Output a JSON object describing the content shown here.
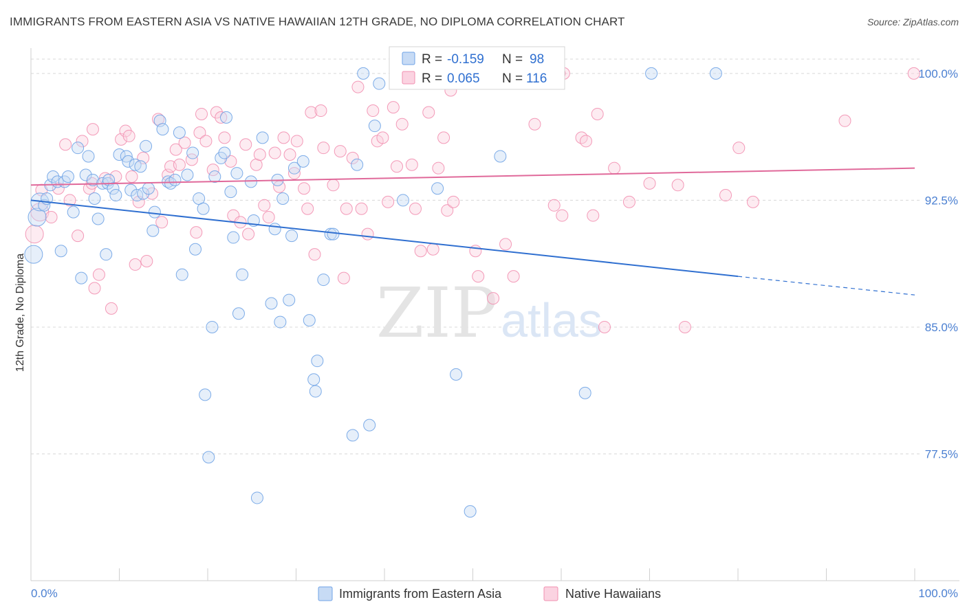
{
  "header": {
    "title": "IMMIGRANTS FROM EASTERN ASIA VS NATIVE HAWAIIAN 12TH GRADE, NO DIPLOMA CORRELATION CHART",
    "source": "Source: ZipAtlas.com"
  },
  "watermark": {
    "zip": "ZIP",
    "atlas": "atlas"
  },
  "colors": {
    "blue": "#6fa3e6",
    "blue_line": "#2f6fd0",
    "pink": "#f28fb0",
    "pink_line": "#e0699a",
    "tick_label": "#4a7fd1",
    "grid": "#d8d8d8"
  },
  "legend_box": {
    "rows": [
      {
        "series": "blue",
        "r_label": "R =",
        "r_value": "-0.159",
        "n_label": "N =",
        "n_value": "98"
      },
      {
        "series": "pink",
        "r_label": "R =",
        "r_value": "0.065",
        "n_label": "N =",
        "n_value": "116"
      }
    ]
  },
  "chart_data": {
    "type": "scatter",
    "title": "IMMIGRANTS FROM EASTERN ASIA VS NATIVE HAWAIIAN 12TH GRADE, NO DIPLOMA CORRELATION CHART",
    "xlabel": "",
    "ylabel": "12th Grade, No Diploma",
    "xlim": [
      0,
      100
    ],
    "ylim": [
      70,
      101.5
    ],
    "x_tick_labels": [
      "0.0%",
      "100.0%"
    ],
    "y_ticks": [
      77.5,
      85.0,
      92.5,
      100.0
    ],
    "y_tick_labels": [
      "77.5%",
      "85.0%",
      "92.5%",
      "100.0%"
    ],
    "grid": true,
    "legend_position": "bottom",
    "series": [
      {
        "name": "Immigrants from Eastern Asia",
        "color": "#6fa3e6",
        "trend": {
          "x": [
            0,
            80
          ],
          "y": [
            92.5,
            88.0
          ],
          "dashed_to": [
            100,
            86.9
          ]
        },
        "points": [
          [
            0.3,
            89.3
          ],
          [
            0.7,
            91.5
          ],
          [
            1.0,
            92.4
          ],
          [
            1.5,
            92.2
          ],
          [
            1.8,
            92.6
          ],
          [
            2.2,
            93.4
          ],
          [
            2.5,
            93.9
          ],
          [
            3.0,
            93.6
          ],
          [
            3.4,
            89.5
          ],
          [
            3.8,
            93.6
          ],
          [
            4.2,
            93.9
          ],
          [
            4.8,
            91.8
          ],
          [
            5.3,
            95.6
          ],
          [
            5.7,
            87.9
          ],
          [
            6.2,
            94.0
          ],
          [
            6.5,
            95.1
          ],
          [
            7.0,
            93.7
          ],
          [
            7.2,
            92.6
          ],
          [
            7.6,
            91.4
          ],
          [
            8.1,
            93.5
          ],
          [
            8.5,
            89.3
          ],
          [
            8.7,
            93.5
          ],
          [
            8.8,
            93.7
          ],
          [
            9.3,
            93.2
          ],
          [
            9.6,
            92.8
          ],
          [
            10.0,
            95.2
          ],
          [
            10.8,
            95.1
          ],
          [
            11.0,
            94.8
          ],
          [
            11.3,
            93.1
          ],
          [
            11.8,
            94.6
          ],
          [
            12.0,
            92.8
          ],
          [
            12.4,
            94.5
          ],
          [
            12.7,
            92.9
          ],
          [
            13.0,
            95.7
          ],
          [
            13.3,
            93.2
          ],
          [
            13.8,
            90.7
          ],
          [
            14.0,
            91.8
          ],
          [
            14.6,
            97.2
          ],
          [
            14.9,
            96.7
          ],
          [
            15.5,
            93.6
          ],
          [
            15.8,
            93.5
          ],
          [
            16.3,
            93.7
          ],
          [
            16.8,
            96.5
          ],
          [
            17.1,
            88.1
          ],
          [
            17.7,
            94.0
          ],
          [
            18.3,
            95.3
          ],
          [
            18.6,
            89.6
          ],
          [
            19.0,
            92.6
          ],
          [
            19.5,
            92.0
          ],
          [
            19.7,
            81.0
          ],
          [
            20.1,
            77.3
          ],
          [
            20.5,
            85.0
          ],
          [
            20.8,
            93.9
          ],
          [
            21.5,
            95.0
          ],
          [
            21.9,
            95.3
          ],
          [
            22.1,
            97.4
          ],
          [
            22.6,
            93.0
          ],
          [
            22.9,
            90.3
          ],
          [
            23.3,
            94.1
          ],
          [
            23.5,
            85.8
          ],
          [
            23.9,
            88.1
          ],
          [
            24.9,
            93.6
          ],
          [
            25.2,
            91.3
          ],
          [
            25.6,
            74.9
          ],
          [
            26.2,
            96.2
          ],
          [
            27.2,
            86.4
          ],
          [
            27.6,
            90.8
          ],
          [
            27.9,
            93.7
          ],
          [
            28.2,
            85.3
          ],
          [
            28.5,
            92.6
          ],
          [
            29.2,
            86.6
          ],
          [
            29.5,
            90.4
          ],
          [
            29.8,
            94.4
          ],
          [
            30.8,
            94.8
          ],
          [
            31.5,
            85.4
          ],
          [
            32.0,
            81.9
          ],
          [
            32.2,
            81.2
          ],
          [
            32.4,
            83.0
          ],
          [
            33.1,
            87.8
          ],
          [
            33.9,
            90.5
          ],
          [
            34.2,
            90.5
          ],
          [
            36.4,
            78.6
          ],
          [
            36.9,
            94.6
          ],
          [
            37.6,
            100.0
          ],
          [
            38.3,
            79.2
          ],
          [
            38.9,
            96.9
          ],
          [
            39.4,
            99.4
          ],
          [
            42.1,
            92.5
          ],
          [
            42.6,
            100.0
          ],
          [
            46.0,
            93.2
          ],
          [
            48.1,
            82.2
          ],
          [
            49.7,
            74.1
          ],
          [
            53.1,
            95.1
          ],
          [
            62.7,
            81.1
          ],
          [
            70.2,
            100.0
          ],
          [
            77.5,
            100.0
          ]
        ]
      },
      {
        "name": "Native Hawaiians",
        "color": "#f28fb0",
        "trend": {
          "x": [
            0,
            100
          ],
          "y": [
            93.4,
            94.4
          ]
        },
        "points": [
          [
            0.4,
            90.5
          ],
          [
            1.0,
            91.8
          ],
          [
            1.2,
            93.1
          ],
          [
            2.3,
            91.5
          ],
          [
            3.1,
            93.2
          ],
          [
            3.9,
            95.8
          ],
          [
            4.4,
            92.5
          ],
          [
            5.3,
            90.4
          ],
          [
            5.8,
            96.0
          ],
          [
            6.6,
            93.2
          ],
          [
            6.9,
            93.5
          ],
          [
            7.0,
            96.7
          ],
          [
            7.2,
            87.3
          ],
          [
            7.7,
            88.1
          ],
          [
            8.4,
            93.8
          ],
          [
            9.1,
            86.1
          ],
          [
            9.6,
            93.9
          ],
          [
            10.2,
            96.1
          ],
          [
            10.7,
            96.6
          ],
          [
            11.1,
            96.3
          ],
          [
            11.4,
            93.9
          ],
          [
            11.8,
            88.7
          ],
          [
            12.2,
            92.4
          ],
          [
            12.7,
            95.0
          ],
          [
            13.1,
            88.9
          ],
          [
            13.7,
            92.9
          ],
          [
            14.4,
            97.3
          ],
          [
            14.8,
            91.2
          ],
          [
            15.5,
            94.0
          ],
          [
            15.8,
            94.5
          ],
          [
            16.4,
            95.5
          ],
          [
            16.8,
            94.6
          ],
          [
            17.4,
            95.9
          ],
          [
            18.2,
            94.9
          ],
          [
            18.7,
            90.6
          ],
          [
            19.1,
            96.5
          ],
          [
            19.3,
            97.6
          ],
          [
            19.8,
            96.0
          ],
          [
            20.6,
            94.3
          ],
          [
            21.0,
            97.7
          ],
          [
            21.5,
            97.4
          ],
          [
            21.9,
            96.2
          ],
          [
            22.6,
            94.8
          ],
          [
            22.9,
            91.6
          ],
          [
            23.7,
            91.2
          ],
          [
            24.3,
            95.8
          ],
          [
            24.6,
            90.5
          ],
          [
            25.5,
            94.6
          ],
          [
            25.9,
            95.2
          ],
          [
            26.4,
            92.2
          ],
          [
            26.9,
            91.5
          ],
          [
            27.6,
            95.3
          ],
          [
            28.1,
            93.3
          ],
          [
            28.6,
            96.2
          ],
          [
            29.3,
            95.2
          ],
          [
            29.8,
            94.1
          ],
          [
            30.1,
            96.0
          ],
          [
            30.9,
            93.2
          ],
          [
            31.3,
            92.0
          ],
          [
            31.7,
            97.7
          ],
          [
            32.1,
            89.3
          ],
          [
            32.8,
            97.8
          ],
          [
            33.1,
            95.6
          ],
          [
            34.2,
            93.4
          ],
          [
            35.0,
            95.4
          ],
          [
            35.4,
            87.9
          ],
          [
            35.7,
            92.0
          ],
          [
            36.4,
            95.0
          ],
          [
            37.4,
            92.0
          ],
          [
            38.1,
            90.5
          ],
          [
            38.7,
            97.8
          ],
          [
            39.2,
            96.0
          ],
          [
            39.8,
            96.2
          ],
          [
            40.4,
            92.4
          ],
          [
            41.0,
            98.0
          ],
          [
            41.4,
            94.5
          ],
          [
            42.0,
            97.0
          ],
          [
            43.1,
            94.6
          ],
          [
            43.5,
            92.0
          ],
          [
            44.1,
            89.5
          ],
          [
            44.8,
            99.7
          ],
          [
            45.0,
            97.7
          ],
          [
            45.5,
            89.6
          ],
          [
            46.1,
            94.4
          ],
          [
            46.7,
            96.2
          ],
          [
            47.1,
            91.9
          ],
          [
            47.8,
            92.4
          ],
          [
            50.3,
            89.5
          ],
          [
            50.6,
            88.0
          ],
          [
            52.3,
            86.7
          ],
          [
            53.7,
            89.9
          ],
          [
            54.6,
            88.0
          ],
          [
            57.0,
            97.0
          ],
          [
            59.2,
            92.2
          ],
          [
            60.1,
            91.6
          ],
          [
            62.3,
            96.2
          ],
          [
            62.8,
            96.0
          ],
          [
            63.6,
            91.6
          ],
          [
            64.1,
            97.6
          ],
          [
            64.9,
            85.0
          ],
          [
            66.0,
            94.4
          ],
          [
            67.7,
            92.4
          ],
          [
            70.0,
            93.5
          ],
          [
            73.2,
            93.4
          ],
          [
            74.0,
            85.0
          ],
          [
            78.6,
            92.8
          ],
          [
            80.1,
            95.6
          ],
          [
            81.7,
            92.4
          ],
          [
            92.1,
            97.2
          ],
          [
            99.9,
            100.0
          ],
          [
            60.3,
            100.0
          ],
          [
            59.8,
            100.0
          ],
          [
            47.5,
            99.0
          ],
          [
            51.0,
            100.0
          ],
          [
            37.0,
            99.2
          ]
        ]
      }
    ]
  }
}
